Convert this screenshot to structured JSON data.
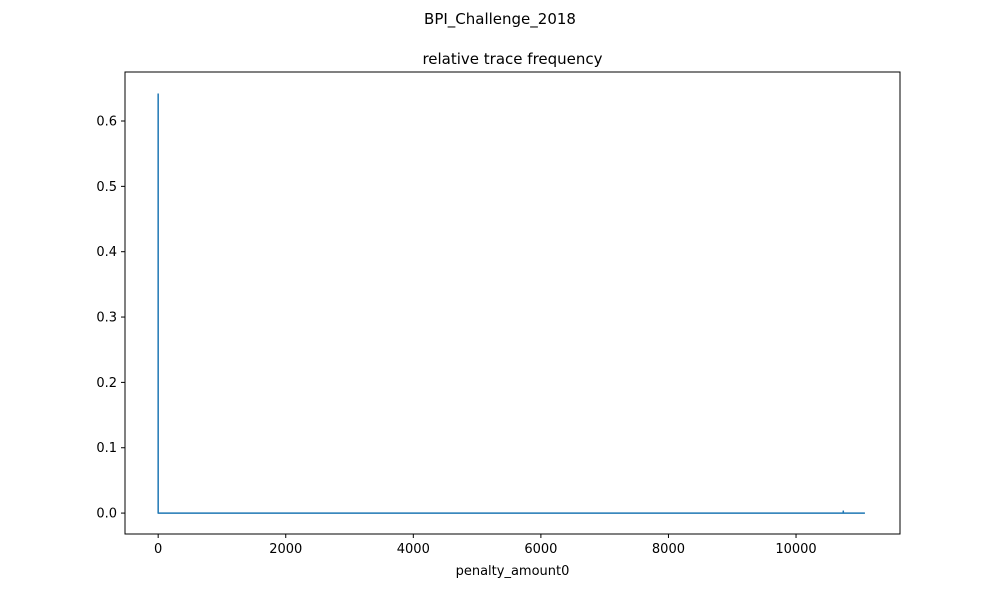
{
  "figure": {
    "suptitle": "BPI_Challenge_2018"
  },
  "chart_data": {
    "type": "line",
    "title": "relative trace frequency",
    "xlabel": "penalty_amount0",
    "ylabel": "",
    "xlim": [
      -520,
      11630
    ],
    "ylim": [
      -0.032,
      0.675
    ],
    "xticks": [
      0,
      2000,
      4000,
      6000,
      8000,
      10000
    ],
    "xtick_labels": [
      "0",
      "2000",
      "4000",
      "6000",
      "8000",
      "10000"
    ],
    "yticks": [
      0.0,
      0.1,
      0.2,
      0.3,
      0.4,
      0.5,
      0.6
    ],
    "ytick_labels": [
      "0.0",
      "0.1",
      "0.2",
      "0.3",
      "0.4",
      "0.5",
      "0.6"
    ],
    "grid": false,
    "legend": false,
    "series": [
      {
        "color": "#1f77b4",
        "x": [
          0,
          0,
          10,
          10740,
          10741,
          10742,
          10760,
          11080
        ],
        "y": [
          0.642,
          0.0,
          0.0,
          0.0,
          0.003,
          0.0,
          0.0,
          0.0
        ]
      }
    ]
  }
}
